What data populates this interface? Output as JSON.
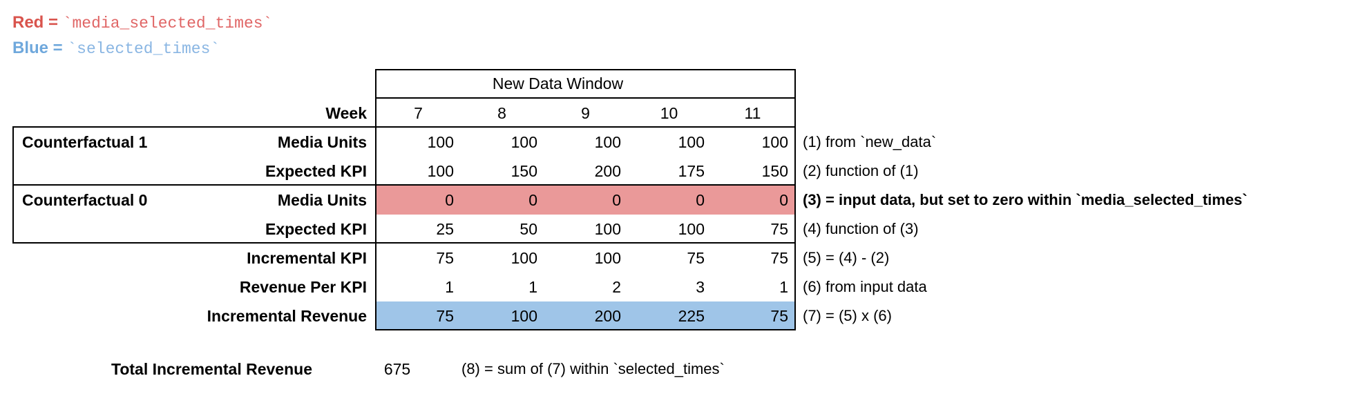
{
  "legend": {
    "red_label": "Red =",
    "red_code": "`media_selected_times`",
    "blue_label": "Blue =",
    "blue_code": "`selected_times`",
    "red_color": "#D9544D",
    "red_code_color": "#E06666",
    "blue_color": "#6FA8DC",
    "blue_code_color": "#8AB6E3"
  },
  "colors": {
    "red_highlight": "#EA9999",
    "blue_highlight": "#9FC5E8",
    "border": "#000000"
  },
  "table": {
    "header": "New Data Window",
    "week_label": "Week",
    "weeks": [
      "7",
      "8",
      "9",
      "10",
      "11"
    ],
    "groups": [
      {
        "label": "Counterfactual 1",
        "row_start": 0,
        "row_span": 2
      },
      {
        "label": "Counterfactual 0",
        "row_start": 2,
        "row_span": 2
      }
    ],
    "rows": [
      {
        "label": "Media Units",
        "values": [
          "100",
          "100",
          "100",
          "100",
          "100"
        ],
        "highlight": "none",
        "annotation": "(1) from `new_data`",
        "annotation_bold": false
      },
      {
        "label": "Expected KPI",
        "values": [
          "100",
          "150",
          "200",
          "175",
          "150"
        ],
        "highlight": "none",
        "annotation": "(2) function of (1)",
        "annotation_bold": false
      },
      {
        "label": "Media Units",
        "values": [
          "0",
          "0",
          "0",
          "0",
          "0"
        ],
        "highlight": "red",
        "annotation": "(3) = input data, but set to zero within `media_selected_times`",
        "annotation_bold": true
      },
      {
        "label": "Expected KPI",
        "values": [
          "25",
          "50",
          "100",
          "100",
          "75"
        ],
        "highlight": "none",
        "annotation": "(4) function of (3)",
        "annotation_bold": false
      },
      {
        "label": "Incremental KPI",
        "values": [
          "75",
          "100",
          "100",
          "75",
          "75"
        ],
        "highlight": "none",
        "annotation": "(5) = (4) - (2)",
        "annotation_bold": false
      },
      {
        "label": "Revenue Per KPI",
        "values": [
          "1",
          "1",
          "2",
          "3",
          "1"
        ],
        "highlight": "none",
        "annotation": "(6) from input data",
        "annotation_bold": false
      },
      {
        "label": "Incremental Revenue",
        "values": [
          "75",
          "100",
          "200",
          "225",
          "75"
        ],
        "highlight": "blue",
        "annotation": "(7) = (5) x (6)",
        "annotation_bold": false
      }
    ]
  },
  "total": {
    "label": "Total Incremental Revenue",
    "value": "675",
    "annotation": "(8) = sum of (7) within `selected_times`"
  },
  "chart_data": {
    "type": "table",
    "title": "New Data Window",
    "columns": [
      "Week 7",
      "Week 8",
      "Week 9",
      "Week 10",
      "Week 11"
    ],
    "rows": [
      {
        "group": "Counterfactual 1",
        "name": "Media Units",
        "values": [
          100,
          100,
          100,
          100,
          100
        ]
      },
      {
        "group": "Counterfactual 1",
        "name": "Expected KPI",
        "values": [
          100,
          150,
          200,
          175,
          150
        ]
      },
      {
        "group": "Counterfactual 0",
        "name": "Media Units",
        "values": [
          0,
          0,
          0,
          0,
          0
        ]
      },
      {
        "group": "Counterfactual 0",
        "name": "Expected KPI",
        "values": [
          25,
          50,
          100,
          100,
          75
        ]
      },
      {
        "group": "",
        "name": "Incremental KPI",
        "values": [
          75,
          100,
          100,
          75,
          75
        ]
      },
      {
        "group": "",
        "name": "Revenue Per KPI",
        "values": [
          1,
          1,
          2,
          3,
          1
        ]
      },
      {
        "group": "",
        "name": "Incremental Revenue",
        "values": [
          75,
          100,
          200,
          225,
          75
        ]
      }
    ],
    "total_incremental_revenue": 675
  }
}
